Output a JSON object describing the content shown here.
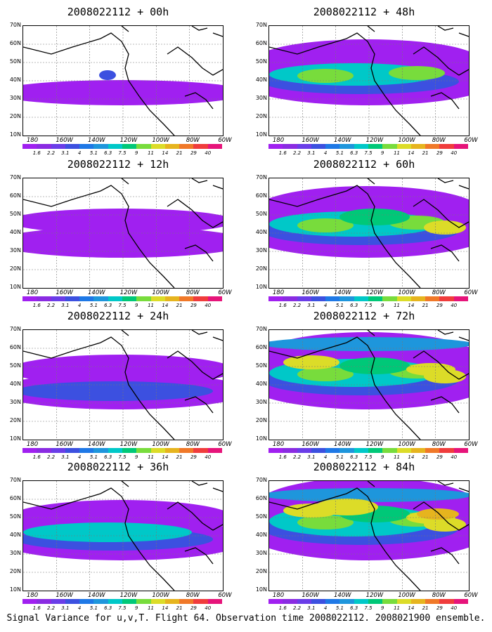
{
  "panels": [
    {
      "title": "2008022112 + 00h",
      "level": 0
    },
    {
      "title": "2008022112 + 12h",
      "level": 1
    },
    {
      "title": "2008022112 + 24h",
      "level": 2
    },
    {
      "title": "2008022112 + 36h",
      "level": 3
    },
    {
      "title": "2008022112 + 48h",
      "level": 4
    },
    {
      "title": "2008022112 + 60h",
      "level": 5
    },
    {
      "title": "2008022112 + 72h",
      "level": 6
    },
    {
      "title": "2008022112 + 84h",
      "level": 7
    }
  ],
  "lat_labels": [
    "70N",
    "60N",
    "50N",
    "40N",
    "30N",
    "20N",
    "10N"
  ],
  "lon_labels": [
    "180",
    "160W",
    "140W",
    "120W",
    "100W",
    "80W",
    "60W"
  ],
  "colorbar": {
    "labels": [
      "1.6",
      "2.2",
      "3.1",
      "4",
      "5.1",
      "6.3",
      "7.5",
      "9",
      "11",
      "14",
      "21",
      "29",
      "40"
    ],
    "colors": [
      "#a020f0",
      "#8a2be2",
      "#6a3de8",
      "#3c50e0",
      "#1e78e6",
      "#1e96dc",
      "#00c8c8",
      "#00c878",
      "#78dc3c",
      "#dcdc28",
      "#e6b41e",
      "#f07828",
      "#f03c3c",
      "#e6147a"
    ]
  },
  "caption": "Signal Variance for u,v,T. Flight 64. Observation time 2008022112. 2008021900 ensemble."
}
